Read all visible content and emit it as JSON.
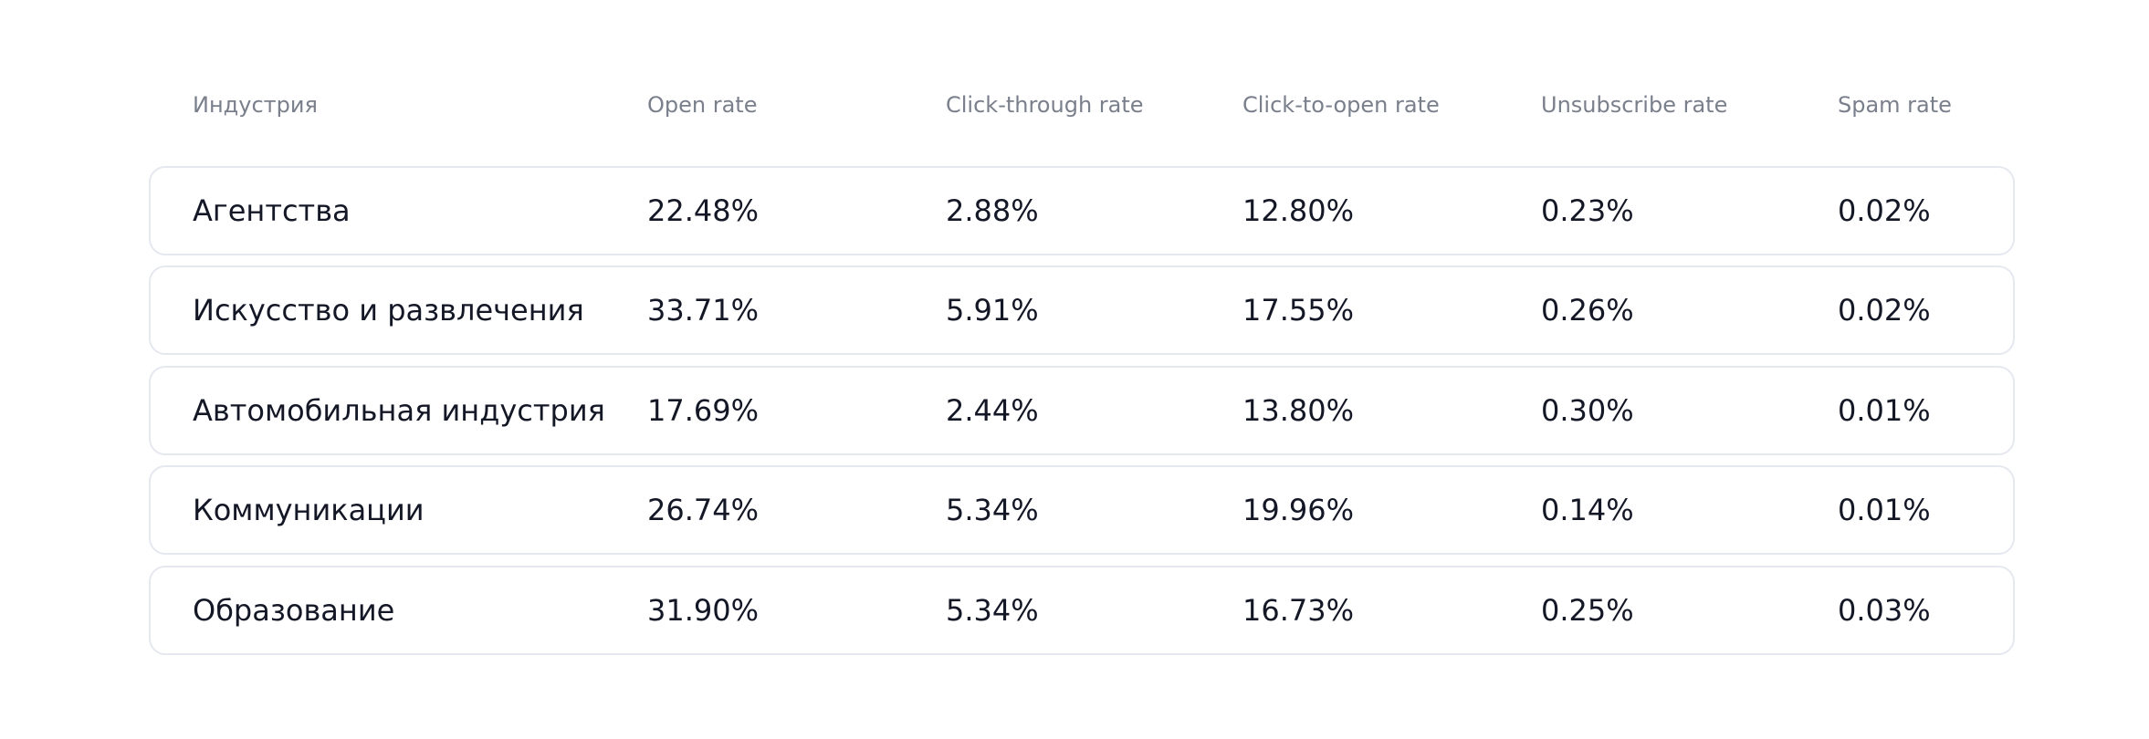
{
  "table": {
    "header": [
      "Индустрия",
      "Open rate",
      "Click-through rate",
      "Click-to-open rate",
      "Unsubscribe rate",
      "Spam rate"
    ],
    "rows": [
      [
        "Агентства",
        "22.48%",
        "2.88%",
        "12.80%",
        "0.23%",
        "0.02%"
      ],
      [
        "Искусство и развлечения",
        "33.71%",
        "5.91%",
        "17.55%",
        "0.26%",
        "0.02%"
      ],
      [
        "Автомобильная индустрия",
        "17.69%",
        "2.44%",
        "13.80%",
        "0.30%",
        "0.01%"
      ],
      [
        "Коммуникации",
        "26.74%",
        "5.34%",
        "19.96%",
        "0.14%",
        "0.01%"
      ],
      [
        "Образование",
        "31.90%",
        "5.34%",
        "16.73%",
        "0.25%",
        "0.03%"
      ]
    ]
  }
}
